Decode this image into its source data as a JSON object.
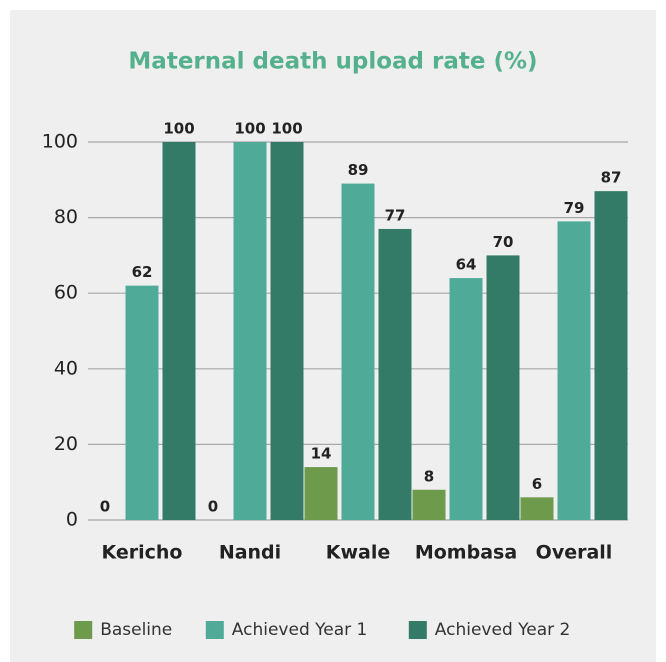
{
  "chart_data": {
    "type": "bar",
    "title": "Maternal death upload rate (%)",
    "categories": [
      "Kericho",
      "Nandi",
      "Kwale",
      "Mombasa",
      "Overall"
    ],
    "series": [
      {
        "name": "Baseline",
        "color": "#6e9a4b",
        "values": [
          0,
          0,
          14,
          8,
          6
        ]
      },
      {
        "name": "Achieved Year 1",
        "color": "#4fab98",
        "values": [
          62,
          100,
          89,
          64,
          79
        ]
      },
      {
        "name": "Achieved Year 2",
        "color": "#347b67",
        "values": [
          100,
          100,
          77,
          70,
          87
        ]
      }
    ],
    "ylim": [
      0,
      100
    ],
    "yticks": [
      0,
      20,
      40,
      60,
      80,
      100
    ],
    "grid": true,
    "legend": "bottom"
  }
}
